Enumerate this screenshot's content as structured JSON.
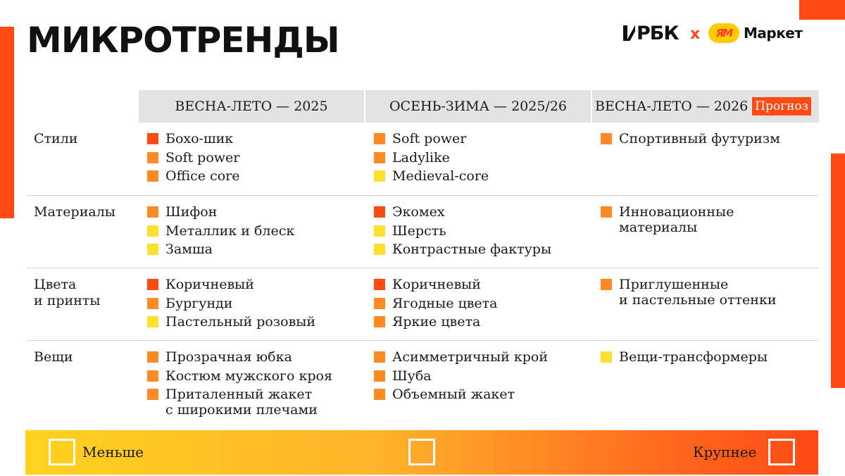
{
  "title": "МИКРОТРЕНДЫ",
  "logos": {
    "rbk": "РБК",
    "times": "x",
    "ya": "ЯМ",
    "market": "Маркет"
  },
  "columns": [
    {
      "label": "ВЕСНА-ЛЕТО — 2025"
    },
    {
      "label": "ОСЕНЬ-ЗИМА — 2025/26"
    },
    {
      "label": "ВЕСНА-ЛЕТО — 2026",
      "badge": "Прогноз"
    }
  ],
  "rows": [
    {
      "label": "Стили",
      "cells": [
        [
          {
            "text": "Бохо-шик",
            "level": "red"
          },
          {
            "text": "Soft power",
            "level": "orange"
          },
          {
            "text": "Office core",
            "level": "orange"
          }
        ],
        [
          {
            "text": "Soft power",
            "level": "orange"
          },
          {
            "text": "Ladylike",
            "level": "orange"
          },
          {
            "text": "Medieval-core",
            "level": "yellow"
          }
        ],
        [
          {
            "text": "Спортивный футуризм",
            "level": "orange"
          }
        ]
      ]
    },
    {
      "label": "Материалы",
      "cells": [
        [
          {
            "text": "Шифон",
            "level": "orange"
          },
          {
            "text": "Металлик и блеск",
            "level": "yellow"
          },
          {
            "text": "Замша",
            "level": "yellow"
          }
        ],
        [
          {
            "text": "Экомех",
            "level": "red"
          },
          {
            "text": "Шерсть",
            "level": "yellow"
          },
          {
            "text": "Контрастные фактуры",
            "level": "yellow"
          }
        ],
        [
          {
            "text": "Инновационные\nматериалы",
            "level": "orange"
          }
        ]
      ]
    },
    {
      "label": "Цвета\nи принты",
      "cells": [
        [
          {
            "text": "Коричневый",
            "level": "red"
          },
          {
            "text": "Бургунди",
            "level": "orange"
          },
          {
            "text": "Пастельный розовый",
            "level": "yellow"
          }
        ],
        [
          {
            "text": "Коричневый",
            "level": "red"
          },
          {
            "text": "Ягодные цвета",
            "level": "orange"
          },
          {
            "text": "Яркие цвета",
            "level": "orange"
          }
        ],
        [
          {
            "text": "Приглушенные\nи пастельные оттенки",
            "level": "orange"
          }
        ]
      ]
    },
    {
      "label": "Вещи",
      "cells": [
        [
          {
            "text": "Прозрачная юбка",
            "level": "orange"
          },
          {
            "text": "Костюм мужского кроя",
            "level": "orange"
          },
          {
            "text": "Приталенный жакет\nс широкими плечами",
            "level": "orange"
          }
        ],
        [
          {
            "text": "Асимметричный крой",
            "level": "orange"
          },
          {
            "text": "Шуба",
            "level": "orange"
          },
          {
            "text": "Объемный жакет",
            "level": "orange"
          }
        ],
        [
          {
            "text": "Вещи-трансформеры",
            "level": "yellow"
          }
        ]
      ]
    }
  ],
  "legend": {
    "smaller": "Меньше",
    "larger": "Крупнее"
  },
  "colors": {
    "accent": "#ff4a14",
    "red": "#ff4a14",
    "orange": "#ff8a24",
    "yellow": "#ffdf2e",
    "header_bg": "#e3e3e3"
  }
}
